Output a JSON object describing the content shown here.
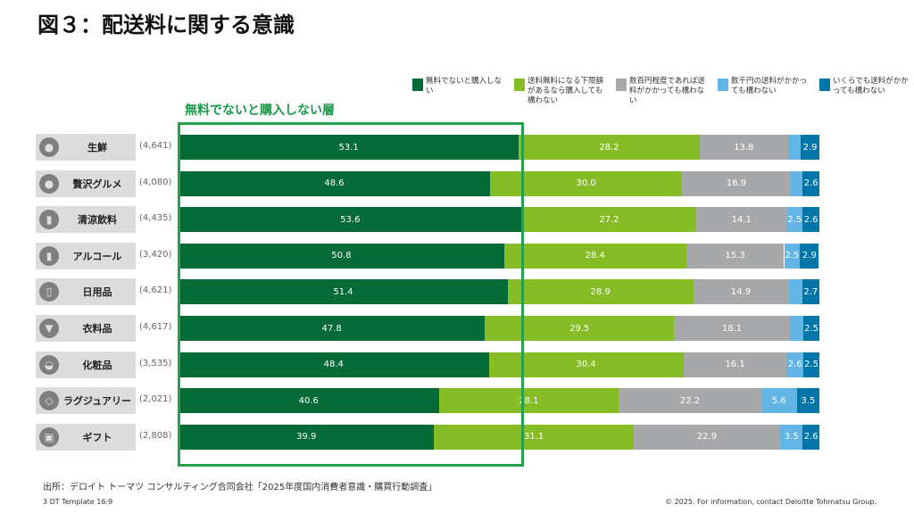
{
  "title": "図３：配送料に関する意識",
  "highlight_label": "無料でないと購入しない層",
  "source": "出所：デロイト トーマツ コンサルティング合同会社「2025年度国内消費者意識・購買行動調査」",
  "footer_left": "3   DT Template 16:9",
  "footer_right": "© 2025. For information, contact Deloitte Tohmatsu Group.",
  "chart_data": {
    "type": "bar",
    "orientation": "horizontal-stacked-100",
    "categories": [
      "生鮮",
      "贅沢グルメ",
      "清涼飲料",
      "アルコール",
      "日用品",
      "衣料品",
      "化粧品",
      "ラグジュアリー",
      "ギフト"
    ],
    "sample_sizes": [
      "(4,641)",
      "(4,080)",
      "(4,435)",
      "(3,420)",
      "(4,621)",
      "(4,617)",
      "(3,535)",
      "(2,021)",
      "(2,808)"
    ],
    "icons": [
      "apple-icon",
      "apple-icon",
      "bottle-icon",
      "bottle-icon",
      "spray-bottle-icon",
      "shirt-icon",
      "perfume-icon",
      "diamond-icon",
      "gift-icon"
    ],
    "legend_placement": "top-right",
    "series": [
      {
        "name": "無料でないと購入しない",
        "color": "#046a38",
        "values": [
          53.1,
          48.6,
          53.6,
          50.8,
          51.4,
          47.8,
          48.4,
          40.6,
          39.9
        ],
        "labels": [
          "53.1",
          "48.6",
          "53.6",
          "50.8",
          "51.4",
          "47.8",
          "48.4",
          "40.6",
          "39.9"
        ]
      },
      {
        "name": "送料無料になる下限額があるなら購入しても構わない",
        "color": "#86bc25",
        "values": [
          28.2,
          30.0,
          27.2,
          28.4,
          28.9,
          29.5,
          30.4,
          28.1,
          31.1
        ],
        "labels": [
          "28.2",
          "30.0",
          "27.2",
          "28.4",
          "28.9",
          "29.5",
          "30.4",
          "28.1",
          "31.1"
        ]
      },
      {
        "name": "数百円程度であれば送料がかかっても構わない",
        "color": "#a7a8aa",
        "values": [
          13.8,
          16.9,
          14.1,
          15.3,
          14.9,
          18.1,
          16.1,
          22.2,
          22.9
        ],
        "labels": [
          "13.8",
          "16.9",
          "14.1",
          "15.3",
          "14.9",
          "18.1",
          "16.1",
          "22.2",
          "22.9"
        ]
      },
      {
        "name": "数千円の送料がかかっても構わない",
        "color": "#62b5e5",
        "values": [
          2.0,
          1.9,
          2.5,
          2.5,
          2.1,
          2.1,
          2.6,
          5.6,
          3.5
        ],
        "labels": [
          "",
          "",
          "2.5",
          "2.5",
          "",
          "",
          "2.6",
          "5.6",
          "3.5"
        ]
      },
      {
        "name": "いくらでも送料がかかっても構わない",
        "color": "#0076a8",
        "values": [
          2.9,
          2.6,
          2.6,
          2.9,
          2.7,
          2.5,
          2.5,
          3.5,
          2.6
        ],
        "labels": [
          "2.9",
          "2.6",
          "2.6",
          "2.9",
          "2.7",
          "2.5",
          "2.5",
          "3.5",
          "2.6"
        ]
      }
    ]
  }
}
